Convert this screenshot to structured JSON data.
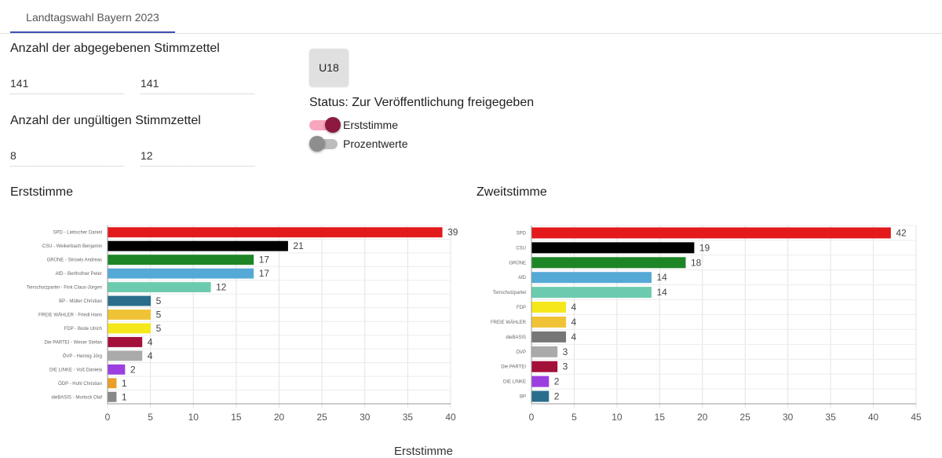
{
  "tabs": [
    {
      "label": "Landtagswahl Bayern 2023"
    }
  ],
  "form": {
    "ballots_label": "Anzahl der abgegebenen Stimmzettel",
    "ballots_values": [
      "141",
      "141"
    ],
    "invalid_label": "Anzahl der ungültigen Stimmzettel",
    "invalid_values": [
      "8",
      "12"
    ]
  },
  "u18_button": "U18",
  "status_text": "Status: Zur Veröffentlichung freigegeben",
  "toggles": [
    {
      "label": "Erststimme",
      "on": true
    },
    {
      "label": "Prozentwerte",
      "on": false
    }
  ],
  "sections": {
    "left_title": "Erststimme",
    "right_title": "Zweitstimme",
    "bottom_title": "Erststimme"
  },
  "chart_data": [
    {
      "type": "bar",
      "orientation": "horizontal",
      "categories": [
        "SPD -  Liebscher Daniel",
        "CSU -  Weikerbach Benjamin",
        "GRÜNE -  Strowis Andreas",
        "AfD -  Berthofner Peter",
        "Tierschutzpartei -  Fink Claus-Jürgen",
        "BP -  Müller Christian",
        "FREIE WÄHLER -  Friedl Hans",
        "FDP -  Bode Ulrich",
        "Die PARTEI -  Weser Stefan",
        "ÖVP -  Hennig Jörg",
        "DIE LINKE -  Voß Daniela",
        "ÖDP -  Huhl Christian",
        "dieBASIS -  Morlock Olaf"
      ],
      "values": [
        39,
        21,
        17,
        17,
        12,
        5,
        5,
        5,
        4,
        4,
        2,
        1,
        1
      ],
      "colors": [
        "#e3191c",
        "#000000",
        "#1e8527",
        "#55a9d6",
        "#6ccbae",
        "#2a6e8c",
        "#f0c336",
        "#f5e81a",
        "#a3103a",
        "#aaaaaa",
        "#9b3fe0",
        "#e8a02a",
        "#888888"
      ],
      "xlim": [
        0,
        40
      ],
      "xticks": [
        0,
        5,
        10,
        15,
        20,
        25,
        30,
        35,
        40
      ],
      "grid": true
    },
    {
      "type": "bar",
      "orientation": "horizontal",
      "categories": [
        "SPD",
        "CSU",
        "GRÜNE",
        "AfD",
        "Tierschutzpartei",
        "FDP",
        "FREIE WÄHLER",
        "dieBASIS",
        "ÖVP",
        "Die PARTEI",
        "DIE LINKE",
        "BP"
      ],
      "values": [
        42,
        19,
        18,
        14,
        14,
        4,
        4,
        4,
        3,
        3,
        2,
        2
      ],
      "colors": [
        "#e3191c",
        "#000000",
        "#1e8527",
        "#55a9d6",
        "#6ccbae",
        "#f5e81a",
        "#f0c336",
        "#777777",
        "#aaaaaa",
        "#a3103a",
        "#9b3fe0",
        "#2a6e8c"
      ],
      "xlim": [
        0,
        45
      ],
      "xticks": [
        0,
        5,
        10,
        15,
        20,
        25,
        30,
        35,
        40,
        45
      ],
      "grid": true
    }
  ]
}
